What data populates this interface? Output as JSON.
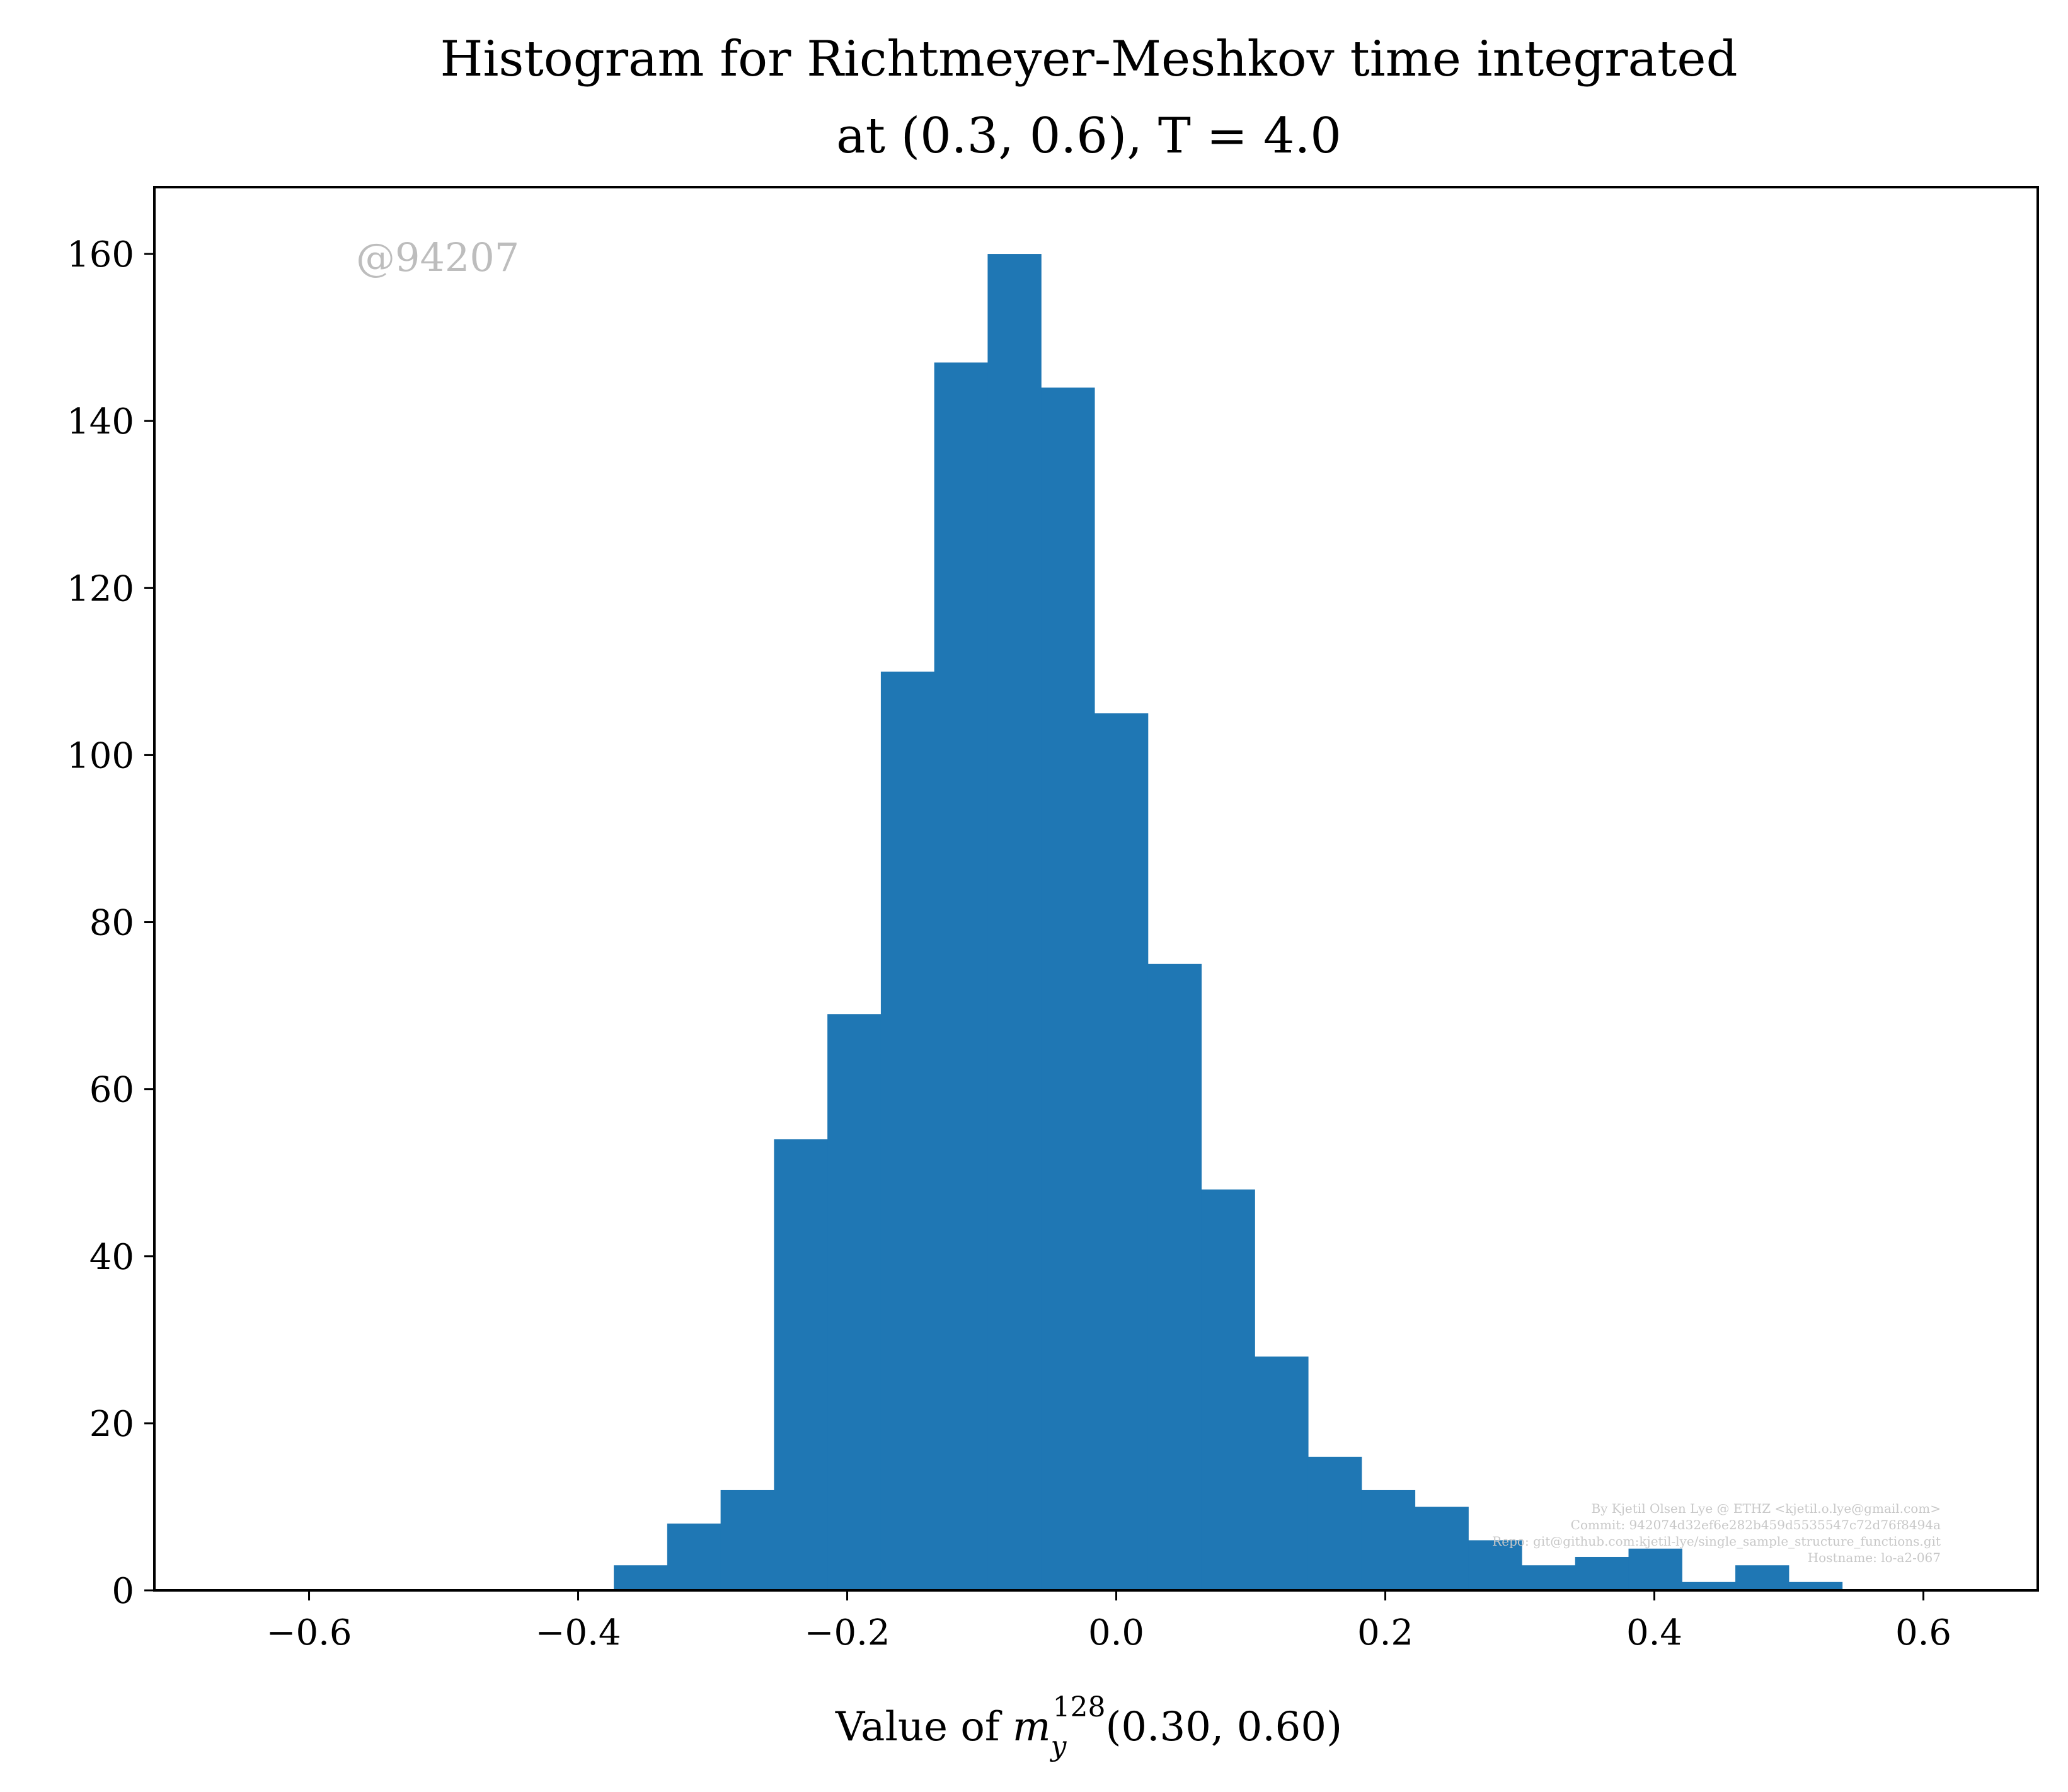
{
  "chart_data": {
    "type": "bar",
    "title": "Histogram for Richtmeyer-Meshkov time integrated",
    "subtitle": "at (0.3, 0.6), T = 4.0",
    "xlabel": "Value of m_y^128(0.30, 0.60)",
    "xlabel_parts": {
      "prefix": "Value of ",
      "variable": "m",
      "subscript": "y",
      "superscript": "128",
      "suffix": "(0.30, 0.60)"
    },
    "ylabel": "",
    "xlim": [
      -0.715,
      0.685
    ],
    "ylim": [
      0,
      168
    ],
    "xticks": [
      -0.6,
      -0.4,
      -0.2,
      0.0,
      0.2,
      0.4,
      0.6
    ],
    "xtick_labels": [
      "−0.6",
      "−0.4",
      "−0.2",
      "0.0",
      "0.2",
      "0.4",
      "0.6"
    ],
    "yticks": [
      0,
      20,
      40,
      60,
      80,
      100,
      120,
      140,
      160
    ],
    "ytick_labels": [
      "0",
      "20",
      "40",
      "60",
      "80",
      "100",
      "120",
      "140",
      "160"
    ],
    "grid": false,
    "bin_width": 0.0397,
    "bins_start": [
      -0.3735,
      -0.3338,
      -0.2941,
      -0.2544,
      -0.2147,
      -0.175,
      -0.1353,
      -0.0956,
      -0.0559,
      -0.0162,
      0.0235,
      0.0632,
      0.1029,
      0.1426,
      0.1823,
      0.222,
      0.2617,
      0.3014,
      0.3411,
      0.3808,
      0.4205,
      0.4602,
      0.4999
    ],
    "counts": [
      3,
      8,
      12,
      54,
      69,
      110,
      147,
      160,
      144,
      105,
      75,
      48,
      28,
      16,
      12,
      10,
      6,
      3,
      4,
      5,
      1,
      3,
      1
    ],
    "bar_color": "#1f77b4",
    "watermark": "@94207",
    "credits": [
      "By Kjetil Olsen Lye @ ETHZ <kjetil.o.lye@gmail.com>",
      "Commit: 942074d32ef6e282b459d5535547c72d76f8494a",
      "Repo: git@github.com:kjetil-lye/single_sample_structure_functions.git",
      "Hostname: lo-a2-067"
    ]
  }
}
